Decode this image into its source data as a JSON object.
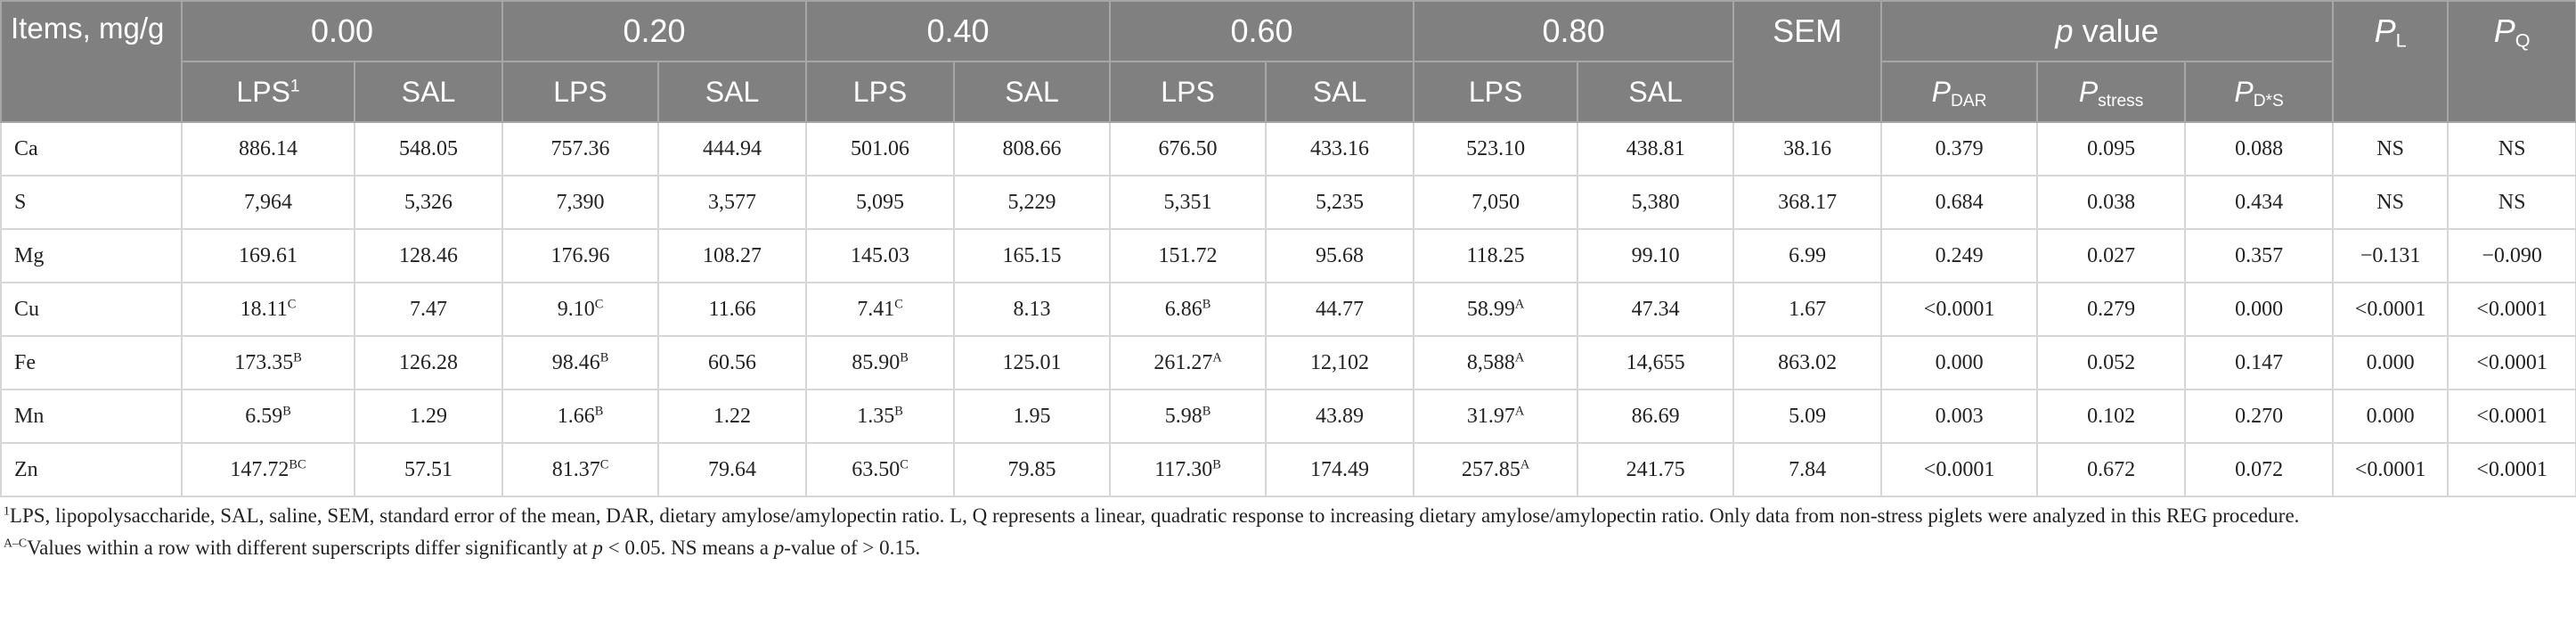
{
  "header": {
    "items": "Items, mg/g",
    "doses": [
      "0.00",
      "0.20",
      "0.40",
      "0.60",
      "0.80"
    ],
    "sem": "SEM",
    "p_value": [
      "p",
      " value"
    ],
    "pl": [
      "P",
      "L"
    ],
    "pq": [
      "P",
      "Q"
    ]
  },
  "sub_header": [
    [
      "LPS",
      "1"
    ],
    [
      "SAL"
    ],
    [
      "LPS"
    ],
    [
      "SAL"
    ],
    [
      "LPS"
    ],
    [
      "SAL"
    ],
    [
      "LPS"
    ],
    [
      "SAL"
    ],
    [
      "LPS"
    ],
    [
      "SAL"
    ]
  ],
  "p_sub_header": [
    [
      "P",
      "DAR"
    ],
    [
      "P",
      "stress"
    ],
    [
      "P",
      "D*S"
    ]
  ],
  "table": {
    "rows": [
      [
        "Ca",
        "886.14",
        "548.05",
        "757.36",
        "444.94",
        "501.06",
        "808.66",
        "676.50",
        "433.16",
        "523.10",
        "438.81",
        "38.16",
        "0.379",
        "0.095",
        "0.088",
        "NS",
        "NS"
      ],
      [
        "S",
        "7,964",
        "5,326",
        "7,390",
        "3,577",
        "5,095",
        "5,229",
        "5,351",
        "5,235",
        "7,050",
        "5,380",
        "368.17",
        "0.684",
        "0.038",
        "0.434",
        "NS",
        "NS"
      ],
      [
        "Mg",
        "169.61",
        "128.46",
        "176.96",
        "108.27",
        "145.03",
        "165.15",
        "151.72",
        "95.68",
        "118.25",
        "99.10",
        "6.99",
        "0.249",
        "0.027",
        "0.357",
        "−0.131",
        "−0.090"
      ],
      [
        "Cu",
        [
          "18.11",
          "C"
        ],
        "7.47",
        [
          "9.10",
          "C"
        ],
        "11.66",
        [
          "7.41",
          "C"
        ],
        "8.13",
        [
          "6.86",
          "B"
        ],
        "44.77",
        [
          "58.99",
          "A"
        ],
        "47.34",
        "1.67",
        "<0.0001",
        "0.279",
        "0.000",
        "<0.0001",
        "<0.0001"
      ],
      [
        "Fe",
        [
          "173.35",
          "B"
        ],
        "126.28",
        [
          "98.46",
          "B"
        ],
        "60.56",
        [
          "85.90",
          "B"
        ],
        "125.01",
        [
          "261.27",
          "A"
        ],
        "12,102",
        [
          "8,588",
          "A"
        ],
        "14,655",
        "863.02",
        "0.000",
        "0.052",
        "0.147",
        "0.000",
        "<0.0001"
      ],
      [
        "Mn",
        [
          "6.59",
          "B"
        ],
        "1.29",
        [
          "1.66",
          "B"
        ],
        "1.22",
        [
          "1.35",
          "B"
        ],
        "1.95",
        [
          "5.98",
          "B"
        ],
        "43.89",
        [
          "31.97",
          "A"
        ],
        "86.69",
        "5.09",
        "0.003",
        "0.102",
        "0.270",
        "0.000",
        "<0.0001"
      ],
      [
        "Zn",
        [
          "147.72",
          "BC"
        ],
        "57.51",
        [
          "81.37",
          "C"
        ],
        "79.64",
        [
          "63.50",
          "C"
        ],
        "79.85",
        [
          "117.30",
          "B"
        ],
        "174.49",
        [
          "257.85",
          "A"
        ],
        "241.75",
        "7.84",
        "<0.0001",
        "0.672",
        "0.072",
        "<0.0001",
        "<0.0001"
      ]
    ]
  },
  "footnotes": [
    {
      "sup": "1",
      "parts": [
        "LPS, lipopolysaccharide, SAL, saline, SEM, standard error of the mean, DAR, dietary amylose/amylopectin ratio. L, Q represents a linear, quadratic response to increasing dietary amylose/amylopectin ratio. Only data from non-stress piglets were analyzed in this REG procedure."
      ]
    },
    {
      "sup": "A–C",
      "parts": [
        "Values within a row with different superscripts differ significantly at ",
        "p",
        " < 0.05. NS means a ",
        "p",
        "-value of > 0.15."
      ]
    }
  ]
}
